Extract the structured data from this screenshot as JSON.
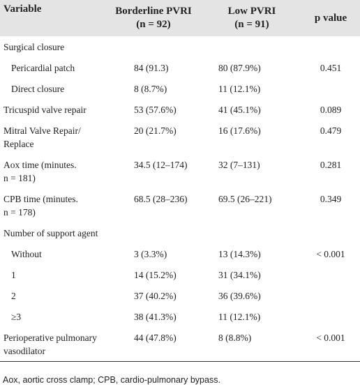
{
  "table": {
    "header": [
      "Variable",
      [
        "Borderline PVRI",
        "(n = 92)"
      ],
      [
        "Low PVRI",
        "(n = 91)"
      ],
      "p value"
    ],
    "rows": [
      [
        "Surgical closure",
        null,
        null,
        null
      ],
      [
        "Pericardial patch",
        "84 (91.3)",
        "80 (87.9%)",
        "0.451"
      ],
      [
        "Direct closure",
        "8 (8.7%)",
        "11 (12.1%)",
        null
      ],
      [
        "Tricuspid valve repair",
        "53 (57.6%)",
        "41 (45.1%)",
        "0.089"
      ],
      [
        "Mitral Valve Repair/ Replace",
        "20 (21.7%)",
        "16 (17.6%)",
        "0.479"
      ],
      [
        "Aox time (minutes. n = 181)",
        "34.5 (12–174)",
        "32 (7–131)",
        "0.281"
      ],
      [
        "CPB time (minutes. n = 178)",
        "68.5 (28–236)",
        "69.5 (26–221)",
        "0.349"
      ],
      [
        "Number of support agent",
        null,
        null,
        null
      ],
      [
        "Without",
        "3 (3.3%)",
        "13 (14.3%)",
        "< 0.001"
      ],
      [
        "1",
        "14 (15.2%)",
        "31 (34.1%)",
        null
      ],
      [
        "2",
        "37 (40.2%)",
        "36 (39.6%)",
        null
      ],
      [
        "≥3",
        "38 (41.3%)",
        "11 (12.1%)",
        null
      ],
      [
        "Perioperative pulmonary vasodilator",
        "44 (47.8%)",
        "8 (8.8%)",
        "< 0.001"
      ]
    ],
    "footnote": "Aox, aortic cross clamp; CPB, cardio-pulmonary bypass."
  }
}
